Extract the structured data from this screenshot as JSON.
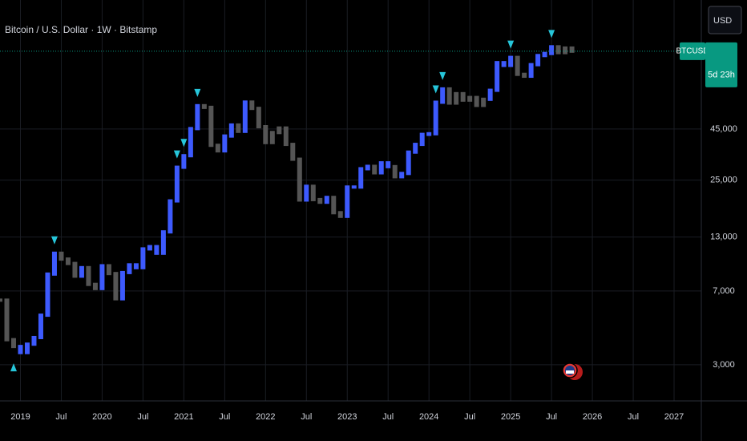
{
  "chart_data": {
    "type": "bars",
    "title": "Bitcoin / U.S. Dollar · 1W · Bitstamp",
    "currency": "USD",
    "symbol": "BTCUSD",
    "countdown": "5d 23h",
    "log_scale": true,
    "grid": true,
    "xlim": [
      "2018-10",
      "2027-05"
    ],
    "xticks": [
      {
        "value": "2019-01",
        "label": "2019"
      },
      {
        "value": "2019-07",
        "label": "Jul"
      },
      {
        "value": "2020-01",
        "label": "2020"
      },
      {
        "value": "2020-07",
        "label": "Jul"
      },
      {
        "value": "2021-01",
        "label": "2021"
      },
      {
        "value": "2021-07",
        "label": "Jul"
      },
      {
        "value": "2022-01",
        "label": "2022"
      },
      {
        "value": "2022-07",
        "label": "Jul"
      },
      {
        "value": "2023-01",
        "label": "2023"
      },
      {
        "value": "2023-07",
        "label": "Jul"
      },
      {
        "value": "2024-01",
        "label": "2024"
      },
      {
        "value": "2024-07",
        "label": "Jul"
      },
      {
        "value": "2025-01",
        "label": "2025"
      },
      {
        "value": "2025-07",
        "label": "Jul"
      },
      {
        "value": "2026-01",
        "label": "2026"
      },
      {
        "value": "2026-07",
        "label": "Jul"
      },
      {
        "value": "2027-01",
        "label": "2027"
      }
    ],
    "ylim": [
      1980,
      198000
    ],
    "yticks": [
      {
        "value": 3000,
        "label": "3,000"
      },
      {
        "value": 7000,
        "label": "7,000"
      },
      {
        "value": 13000,
        "label": "13,000"
      },
      {
        "value": 25000,
        "label": "25,000"
      },
      {
        "value": 45000,
        "label": "45,000"
      }
    ],
    "x": [
      "2018-10",
      "2018-11",
      "2018-12",
      "2019-01",
      "2019-02",
      "2019-03",
      "2019-04",
      "2019-05",
      "2019-06",
      "2019-07",
      "2019-08",
      "2019-09",
      "2019-10",
      "2019-11",
      "2019-12",
      "2020-01",
      "2020-02",
      "2020-03",
      "2020-04",
      "2020-05",
      "2020-06",
      "2020-07",
      "2020-08",
      "2020-09",
      "2020-10",
      "2020-11",
      "2020-12",
      "2021-01",
      "2021-02",
      "2021-03",
      "2021-04",
      "2021-05",
      "2021-06",
      "2021-07",
      "2021-08",
      "2021-09",
      "2021-10",
      "2021-11",
      "2021-12",
      "2022-01",
      "2022-02",
      "2022-03",
      "2022-04",
      "2022-05",
      "2022-06",
      "2022-07",
      "2022-08",
      "2022-09",
      "2022-10",
      "2022-11",
      "2022-12",
      "2023-01",
      "2023-02",
      "2023-03",
      "2023-04",
      "2023-05",
      "2023-06",
      "2023-07",
      "2023-08",
      "2023-09",
      "2023-10",
      "2023-11",
      "2023-12",
      "2024-01",
      "2024-02",
      "2024-03",
      "2024-04",
      "2024-05",
      "2024-06",
      "2024-07",
      "2024-08",
      "2024-09",
      "2024-10",
      "2024-11",
      "2024-12",
      "2025-01",
      "2025-02",
      "2025-03",
      "2025-04",
      "2025-05",
      "2025-06",
      "2025-07",
      "2025-08",
      "2025-09",
      "2025-10"
    ],
    "values": [
      6300,
      4000,
      3700,
      3450,
      3800,
      4100,
      5300,
      8500,
      10800,
      10100,
      9600,
      8300,
      9150,
      7550,
      7200,
      9350,
      8550,
      6400,
      8650,
      9450,
      9150,
      11350,
      11650,
      10800,
      13800,
      19700,
      29000,
      33100,
      45200,
      58800,
      57700,
      37300,
      35000,
      41500,
      47100,
      43800,
      61300,
      57000,
      46200,
      38500,
      43200,
      45500,
      37700,
      31800,
      19900,
      23300,
      20000,
      19400,
      20500,
      17200,
      16500,
      23100,
      23100,
      28500,
      29300,
      27200,
      30500,
      29200,
      26000,
      27000,
      34500,
      37700,
      42300,
      42600,
      61200,
      71300,
      60600,
      67500,
      62700,
      64600,
      59000,
      63300,
      70200,
      96400,
      93400,
      102400,
      84300,
      82500,
      94200,
      104600,
      107100,
      115700,
      108200,
      114000,
      110000
    ],
    "colors": [
      "#555",
      "#555",
      "#555",
      "#3d5afe",
      "#3d5afe",
      "#3d5afe",
      "#3d5afe",
      "#3d5afe",
      "#3d5afe",
      "#555",
      "#555",
      "#555",
      "#3d5afe",
      "#555",
      "#555",
      "#3d5afe",
      "#555",
      "#555",
      "#3d5afe",
      "#3d5afe",
      "#3d5afe",
      "#3d5afe",
      "#3d5afe",
      "#3d5afe",
      "#3d5afe",
      "#3d5afe",
      "#3d5afe",
      "#3d5afe",
      "#3d5afe",
      "#3d5afe",
      "#555",
      "#555",
      "#555",
      "#3d5afe",
      "#3d5afe",
      "#555",
      "#3d5afe",
      "#555",
      "#555",
      "#555",
      "#555",
      "#555",
      "#555",
      "#555",
      "#555",
      "#3d5afe",
      "#555",
      "#555",
      "#3d5afe",
      "#555",
      "#555",
      "#3d5afe",
      "#3d5afe",
      "#3d5afe",
      "#3d5afe",
      "#555",
      "#3d5afe",
      "#3d5afe",
      "#555",
      "#3d5afe",
      "#3d5afe",
      "#3d5afe",
      "#3d5afe",
      "#3d5afe",
      "#3d5afe",
      "#3d5afe",
      "#555",
      "#555",
      "#555",
      "#555",
      "#555",
      "#555",
      "#3d5afe",
      "#3d5afe",
      "#3d5afe",
      "#3d5afe",
      "#555",
      "#555",
      "#3d5afe",
      "#3d5afe",
      "#3d5afe",
      "#3d5afe",
      "#555",
      "#555",
      "#555"
    ],
    "signals_up": [
      "2018-12"
    ],
    "signals_down": [
      "2019-06",
      "2020-12",
      "2021-01",
      "2021-03",
      "2024-02",
      "2024-03",
      "2025-01",
      "2025-07"
    ],
    "signal_color": "#26c6da",
    "price_line_color": "#089981"
  }
}
